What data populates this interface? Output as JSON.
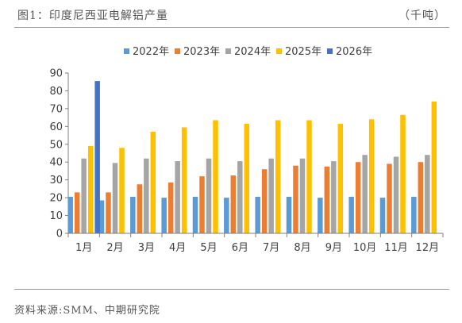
{
  "header": {
    "title": "图1：印度尼西亚电解铝产量",
    "unit": "（千吨）"
  },
  "footer": {
    "source": "资料来源:SMM、中期研究院"
  },
  "chart_data": {
    "type": "bar",
    "title": "印度尼西亚电解铝产量",
    "unit": "千吨",
    "categories": [
      "1月",
      "2月",
      "3月",
      "4月",
      "5月",
      "6月",
      "7月",
      "8月",
      "9月",
      "10月",
      "11月",
      "12月"
    ],
    "ylim": [
      0,
      90
    ],
    "yticks": [
      0,
      10,
      20,
      30,
      40,
      50,
      60,
      70,
      80,
      90
    ],
    "grid": false,
    "legend": "top-center",
    "colors": [
      "#5b9bd5",
      "#ed7d31",
      "#a5a5a5",
      "#ffc000",
      "#4472c4"
    ],
    "series": [
      {
        "name": "2022年",
        "values": [
          20.5,
          18.5,
          20.5,
          20,
          20.5,
          20,
          20.5,
          20.5,
          20,
          20.5,
          20,
          20.5
        ]
      },
      {
        "name": "2023年",
        "values": [
          23,
          23,
          27.5,
          28.5,
          32,
          32.5,
          36,
          38,
          37.5,
          40,
          39,
          40
        ]
      },
      {
        "name": "2024年",
        "values": [
          42,
          39.5,
          42,
          40.5,
          42,
          40.5,
          42,
          42,
          40.5,
          44,
          43,
          44
        ]
      },
      {
        "name": "2025年",
        "values": [
          49,
          48,
          57,
          59.5,
          63.5,
          61.5,
          63.5,
          63.5,
          61.5,
          64,
          66.5,
          74
        ]
      },
      {
        "name": "2026年",
        "values": [
          85.5,
          null,
          null,
          null,
          null,
          null,
          null,
          null,
          null,
          null,
          null,
          null
        ]
      }
    ]
  }
}
